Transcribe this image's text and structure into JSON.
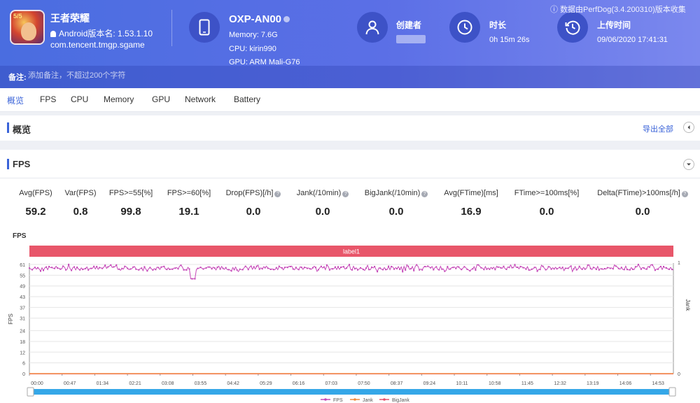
{
  "header": {
    "app": {
      "name": "王者荣耀",
      "version_label": "Android版本名: 1.53.1.10",
      "package": "com.tencent.tmgp.sgame",
      "icon": "game-app-icon"
    },
    "device": {
      "name": "OXP-AN00",
      "memory": "Memory: 7.6G",
      "cpu": "CPU: kirin990",
      "gpu": "GPU: ARM Mali-G76",
      "icon": "phone-icon"
    },
    "creator": {
      "label": "创建者",
      "icon": "user-icon"
    },
    "duration": {
      "label": "时长",
      "value": "0h 15m 26s",
      "icon": "clock-icon"
    },
    "upload": {
      "label": "上传时间",
      "value": "09/06/2020 17:41:31",
      "icon": "history-icon"
    },
    "source_note": "数据由PerfDog(3.4.200310)版本收集",
    "note": {
      "label": "备注:",
      "placeholder": "添加备注，不超过200个字符"
    }
  },
  "tabs": [
    {
      "label": "概览",
      "active": true
    },
    {
      "label": "FPS"
    },
    {
      "label": "CPU"
    },
    {
      "label": "Memory"
    },
    {
      "label": "GPU"
    },
    {
      "label": "Network"
    },
    {
      "label": "Battery"
    }
  ],
  "overview": {
    "title": "概览",
    "export_label": "导出全部"
  },
  "fps_section": {
    "title": "FPS",
    "metrics": [
      {
        "label": "Avg(FPS)",
        "value": "59.2"
      },
      {
        "label": "Var(FPS)",
        "value": "0.8"
      },
      {
        "label": "FPS>=55[%]",
        "value": "99.8"
      },
      {
        "label": "FPS>=60[%]",
        "value": "19.1"
      },
      {
        "label": "Drop(FPS)[/h]",
        "value": "0.0",
        "help": true
      },
      {
        "label": "Jank(/10min)",
        "value": "0.0",
        "help": true
      },
      {
        "label": "BigJank(/10min)",
        "value": "0.0",
        "help": true
      },
      {
        "label": "Avg(FTime)[ms]",
        "value": "16.9"
      },
      {
        "label": "FTime>=100ms[%]",
        "value": "0.0"
      },
      {
        "label": "Delta(FTime)>100ms[/h]",
        "value": "0.0",
        "help": true
      }
    ]
  },
  "chart_data": {
    "type": "line",
    "title": "FPS",
    "band_label": "label1",
    "ylabel": "FPS",
    "y2label": "Jank",
    "ylim": [
      0,
      61
    ],
    "y_ticks": [
      0,
      6,
      12,
      18,
      24,
      31,
      37,
      43,
      49,
      55,
      61
    ],
    "y2lim": [
      0,
      1
    ],
    "y2_ticks": [
      0,
      1
    ],
    "x_ticks": [
      "00:00",
      "00:47",
      "01:34",
      "02:21",
      "03:08",
      "03:55",
      "04:42",
      "05:29",
      "06:16",
      "07:03",
      "07:50",
      "08:37",
      "09:24",
      "10:11",
      "10:58",
      "11:45",
      "12:32",
      "13:19",
      "14:06",
      "14:53"
    ],
    "duration_seconds": 926,
    "series": [
      {
        "name": "FPS",
        "color": "#c548b8",
        "typical_value": 59,
        "range": [
          57,
          61
        ],
        "dips": [
          {
            "time": "03:55",
            "value": 53
          }
        ]
      },
      {
        "name": "Jank",
        "color": "#f28a3c",
        "values": [
          0,
          0
        ]
      },
      {
        "name": "BigJank",
        "color": "#e8506a",
        "values": [
          0,
          0
        ]
      }
    ],
    "grid": true,
    "legend": "bottom-center",
    "colors": {
      "band": "#e8566a",
      "scrollbar": "#35a7e8"
    }
  }
}
